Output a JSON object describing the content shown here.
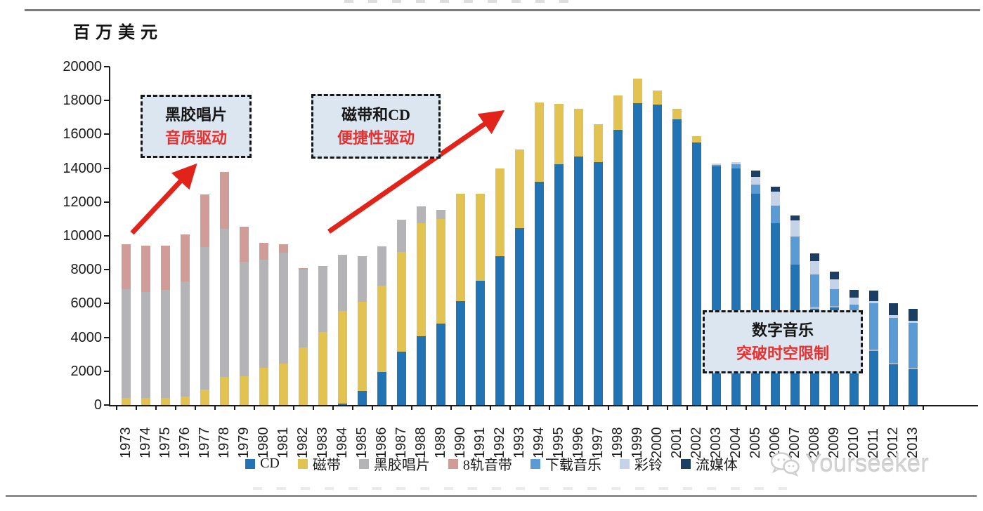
{
  "rules": {
    "top": true,
    "bottom": true
  },
  "unit_label": "百万美元",
  "watermark": {
    "icon": "wechat-icon",
    "text": "Yourseeker"
  },
  "colors": {
    "annotation_fill": "#dce6f1",
    "annotation_red_text": "#e8302e",
    "arrow_red": "#e2231a",
    "axis": "#1a1a1a"
  },
  "annotations": {
    "vinyl": {
      "line1": "黑胶唱片",
      "line2": "音质驱动"
    },
    "tape_cd": {
      "line1": "磁带和CD",
      "line2": "便捷性驱动"
    },
    "digital": {
      "line1": "数字音乐",
      "line2": "突破时空限制"
    }
  },
  "chart_data": {
    "type": "bar",
    "stacked": true,
    "title": "",
    "ylabel": "百万美元",
    "xlabel": "",
    "ylim": [
      0,
      20000
    ],
    "y_tick_step": 2000,
    "grid": false,
    "legend_position": "bottom",
    "categories": [
      "1973",
      "1974",
      "1975",
      "1976",
      "1977",
      "1978",
      "1979",
      "1980",
      "1981",
      "1982",
      "1983",
      "1984",
      "1985",
      "1986",
      "1987",
      "1988",
      "1989",
      "1990",
      "1991",
      "1992",
      "1993",
      "1994",
      "1995",
      "1996",
      "1997",
      "1998",
      "1999",
      "2000",
      "2001",
      "2002",
      "2003",
      "2004",
      "2005",
      "2006",
      "2007",
      "2008",
      "2009",
      "2010",
      "2011",
      "2012",
      "2013"
    ],
    "series": [
      {
        "name": "CD",
        "color": "#2173b4",
        "values": [
          0,
          0,
          0,
          0,
          0,
          0,
          0,
          0,
          0,
          0,
          0,
          100,
          850,
          1950,
          3150,
          4050,
          4800,
          6150,
          7350,
          8800,
          10450,
          13200,
          14250,
          14700,
          14350,
          16250,
          17850,
          17750,
          16900,
          15500,
          14100,
          14000,
          12500,
          10750,
          8300,
          5700,
          5750,
          4600,
          3200,
          2400,
          2100
        ]
      },
      {
        "name": "磁带",
        "color": "#e2c351",
        "values": [
          400,
          400,
          400,
          500,
          900,
          1650,
          1700,
          2200,
          2450,
          3400,
          4300,
          5450,
          5250,
          5100,
          5900,
          6700,
          6200,
          6350,
          5150,
          5200,
          4650,
          4700,
          3550,
          2800,
          2250,
          2050,
          1450,
          850,
          600,
          400,
          0,
          0,
          0,
          0,
          0,
          0,
          0,
          0,
          0,
          0,
          0
        ]
      },
      {
        "name": "黑胶唱片",
        "color": "#b4b4b6",
        "values": [
          6450,
          6300,
          6400,
          6800,
          8450,
          8750,
          6750,
          6400,
          6550,
          4600,
          3900,
          3350,
          2700,
          2350,
          1900,
          1000,
          550,
          0,
          0,
          0,
          0,
          0,
          0,
          0,
          0,
          0,
          0,
          0,
          0,
          0,
          0,
          0,
          0,
          0,
          0,
          100,
          100,
          100,
          100,
          100,
          100
        ]
      },
      {
        "name": "8轨音带",
        "color": "#cf9c98",
        "values": [
          2650,
          2700,
          2600,
          2800,
          3100,
          3400,
          2100,
          1000,
          500,
          100,
          0,
          0,
          0,
          0,
          0,
          0,
          0,
          0,
          0,
          0,
          0,
          0,
          0,
          0,
          0,
          0,
          0,
          0,
          0,
          0,
          0,
          0,
          0,
          0,
          0,
          0,
          0,
          0,
          0,
          0,
          0
        ]
      },
      {
        "name": "下载音乐",
        "color": "#5b9bd5",
        "values": [
          0,
          0,
          0,
          0,
          0,
          0,
          0,
          0,
          0,
          0,
          0,
          0,
          0,
          0,
          0,
          0,
          0,
          0,
          0,
          0,
          0,
          0,
          0,
          0,
          0,
          0,
          0,
          0,
          0,
          0,
          100,
          250,
          550,
          1050,
          1650,
          1900,
          1000,
          1250,
          2700,
          2650,
          2650
        ]
      },
      {
        "name": "彩铃",
        "color": "#c5d3e8",
        "values": [
          0,
          0,
          0,
          0,
          0,
          0,
          0,
          0,
          0,
          0,
          0,
          0,
          0,
          0,
          0,
          0,
          0,
          0,
          0,
          0,
          0,
          0,
          0,
          0,
          0,
          0,
          0,
          0,
          0,
          0,
          50,
          100,
          450,
          800,
          950,
          800,
          580,
          410,
          150,
          150,
          150
        ]
      },
      {
        "name": "流媒体",
        "color": "#1b3f63",
        "values": [
          0,
          0,
          0,
          0,
          0,
          0,
          0,
          0,
          0,
          0,
          0,
          0,
          0,
          0,
          0,
          0,
          0,
          0,
          0,
          0,
          0,
          0,
          0,
          0,
          0,
          0,
          0,
          0,
          0,
          0,
          0,
          0,
          350,
          300,
          300,
          450,
          450,
          460,
          600,
          700,
          700
        ]
      }
    ]
  }
}
